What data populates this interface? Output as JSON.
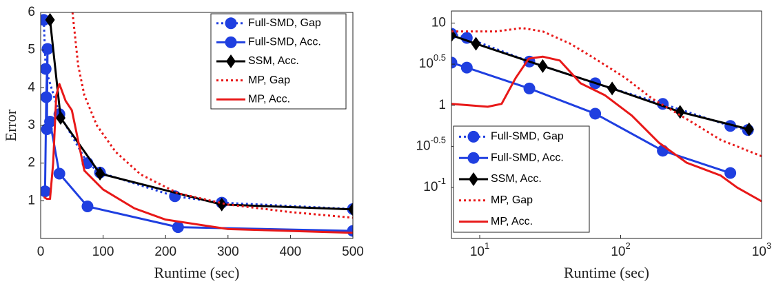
{
  "chart_data": [
    {
      "type": "line",
      "ylabel": "Error",
      "xlabel": "Runtime (sec)",
      "xlim": [
        0,
        500
      ],
      "xticks": [
        0,
        100,
        200,
        300,
        400,
        500
      ],
      "ylim": [
        0,
        6
      ],
      "yticks": [
        1,
        2,
        3,
        4,
        5,
        6
      ],
      "legend": "upper right",
      "series": [
        {
          "name": "Full-SMD, Gap",
          "color": "#1f3fe0",
          "dash": "dot",
          "marker": "circle",
          "x": [
            5,
            8,
            30,
            75,
            95,
            215,
            290,
            500
          ],
          "values": [
            5.8,
            4.5,
            3.3,
            2.0,
            1.75,
            1.12,
            0.95,
            0.78
          ]
        },
        {
          "name": "Full-SMD, Acc.",
          "color": "#1f3fe0",
          "marker": "circle",
          "x": [
            7,
            9,
            11,
            10,
            15,
            30,
            75,
            220,
            500
          ],
          "values": [
            1.25,
            3.75,
            5.03,
            2.9,
            3.1,
            1.72,
            0.85,
            0.3,
            0.2
          ]
        },
        {
          "name": "SSM, Acc.",
          "color": "#000000",
          "marker": "diamond",
          "x": [
            15,
            32,
            95,
            290,
            500
          ],
          "values": [
            5.8,
            3.2,
            1.72,
            0.9,
            0.77
          ]
        },
        {
          "name": "MP, Gap",
          "color": "#e81818",
          "dash": "dot",
          "x": [
            51,
            60,
            70,
            90,
            120,
            160,
            220,
            300,
            400,
            500
          ],
          "values": [
            6,
            4.6,
            3.8,
            3.0,
            2.3,
            1.7,
            1.2,
            0.9,
            0.7,
            0.55
          ]
        },
        {
          "name": "MP, Acc.",
          "color": "#e81818",
          "x": [
            5,
            10,
            15,
            20,
            25,
            30,
            40,
            50,
            70,
            100,
            150,
            200,
            300,
            500
          ],
          "values": [
            1.1,
            1.05,
            1.05,
            2,
            3.8,
            4.1,
            3.65,
            3.4,
            1.8,
            1.3,
            0.8,
            0.5,
            0.25,
            0.15
          ]
        }
      ]
    },
    {
      "type": "line",
      "xlabel": "Runtime (sec)",
      "xscale": "log",
      "yscale": "log",
      "xlim": [
        6.3,
        1000
      ],
      "xticks": [
        {
          "value": 10,
          "label": "10^1"
        },
        {
          "value": 100,
          "label": "10^2"
        },
        {
          "value": 1000,
          "label": "10^3"
        }
      ],
      "ylim": [
        0.024,
        14
      ],
      "yticks": [
        {
          "value": 0.1,
          "label": "10^-1"
        },
        {
          "value": 0.3162,
          "label": "10^-0.5"
        },
        1,
        {
          "value": 3.162,
          "label": "10^0.5"
        },
        10
      ],
      "legend": "lower left",
      "series": [
        {
          "name": "Full-SMD, Gap",
          "color": "#1f3fe0",
          "dash": "dot",
          "marker": "circle",
          "x": [
            6.3,
            8.1,
            22.5,
            66,
            199,
            600,
            800
          ],
          "values": [
            7.4,
            6.6,
            3.4,
            1.85,
            1.04,
            0.56,
            0.5
          ]
        },
        {
          "name": "Full-SMD, Acc.",
          "color": "#1f3fe0",
          "marker": "circle",
          "x": [
            6.3,
            8.1,
            22.5,
            66,
            199,
            600
          ],
          "values": [
            3.3,
            2.87,
            1.6,
            0.79,
            0.28,
            0.15
          ]
        },
        {
          "name": "SSM, Acc.",
          "color": "#000000",
          "marker": "diamond",
          "x": [
            6.3,
            9.4,
            28,
            87,
            264,
            815
          ],
          "values": [
            7.1,
            5.6,
            3.0,
            1.6,
            0.83,
            0.51
          ]
        },
        {
          "name": "MP, Gap",
          "color": "#e81818",
          "dash": "dot",
          "x": [
            6.3,
            13,
            20,
            28,
            44,
            69,
            108,
            168,
            294,
            512,
            1000
          ],
          "values": [
            7.9,
            7.9,
            8.7,
            7.9,
            5.6,
            3.5,
            2.15,
            1.2,
            0.68,
            0.38,
            0.24
          ]
        },
        {
          "name": "MP, Acc.",
          "color": "#e81818",
          "x": [
            6.3,
            11.4,
            14.3,
            18,
            22.3,
            28,
            37,
            52,
            77,
            120,
            187,
            294,
            512,
            670,
            1000
          ],
          "values": [
            1.04,
            0.96,
            1.04,
            2.15,
            3.7,
            3.9,
            3.5,
            1.85,
            1.33,
            0.75,
            0.35,
            0.2,
            0.14,
            0.1,
            0.068
          ]
        }
      ]
    }
  ]
}
